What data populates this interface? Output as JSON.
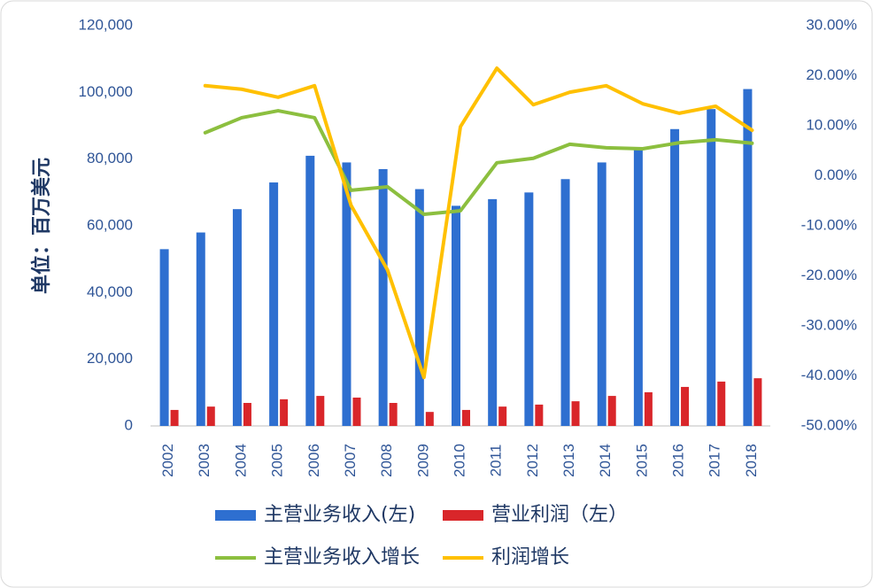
{
  "chart_data": {
    "type": "bar",
    "y_label": "单位：百万美元",
    "categories": [
      "2002",
      "2003",
      "2004",
      "2005",
      "2006",
      "2007",
      "2008",
      "2009",
      "2010",
      "2011",
      "2012",
      "2013",
      "2014",
      "2015",
      "2016",
      "2017",
      "2018"
    ],
    "series": [
      {
        "name": "主营业务收入(左)",
        "color": "#2e6fd0",
        "type": "bar",
        "values": [
          53000,
          58000,
          65000,
          73000,
          81000,
          79000,
          77000,
          71000,
          66000,
          68000,
          70000,
          74000,
          79000,
          83000,
          89000,
          95000,
          101000
        ]
      },
      {
        "name": "营业利润（左）",
        "color": "#d9262a",
        "type": "bar",
        "values": [
          4800,
          5800,
          6900,
          8000,
          9000,
          8500,
          6900,
          4200,
          4800,
          5800,
          6400,
          7400,
          9000,
          10100,
          11700,
          13300,
          14300
        ]
      },
      {
        "name": "主营业务收入增长",
        "color": "#8cbf3f",
        "type": "line",
        "axis": "y2",
        "values": [
          null,
          8.6,
          11.6,
          13.0,
          11.6,
          -2.9,
          -2.2,
          -7.7,
          -7.0,
          2.6,
          3.5,
          6.3,
          5.6,
          5.4,
          6.6,
          7.2,
          6.5
        ]
      },
      {
        "name": "利润增长",
        "color": "#ffc000",
        "type": "line",
        "axis": "y2",
        "values": [
          null,
          18.0,
          17.3,
          15.7,
          18.0,
          -5.9,
          -18.8,
          -40.3,
          9.8,
          21.5,
          14.2,
          16.7,
          18.0,
          14.4,
          12.5,
          13.9,
          9.1
        ]
      }
    ],
    "ylim": [
      0,
      120000
    ],
    "yticks": [
      0,
      {
        "value": 20000,
        "label": "20,000"
      },
      {
        "value": 40000,
        "label": "40,000"
      },
      {
        "value": 60000,
        "label": "60,000"
      },
      {
        "value": 80000,
        "label": "80,000"
      },
      {
        "value": 100000,
        "label": "100,000"
      },
      {
        "value": 120000,
        "label": "120,000"
      }
    ],
    "y2lim": [
      -50,
      30
    ],
    "y2ticks": [
      {
        "value": -50,
        "label": "-50.00%"
      },
      {
        "value": -40,
        "label": "-40.00%"
      },
      {
        "value": -30,
        "label": "-30.00%"
      },
      {
        "value": -20,
        "label": "-20.00%"
      },
      {
        "value": -10,
        "label": "-10.00%"
      },
      {
        "value": 0,
        "label": "0.00%"
      },
      {
        "value": 10,
        "label": "10.00%"
      },
      {
        "value": 20,
        "label": "20.00%"
      },
      {
        "value": 30,
        "label": "30.00%"
      }
    ],
    "grid": false,
    "legend": "bottom"
  }
}
